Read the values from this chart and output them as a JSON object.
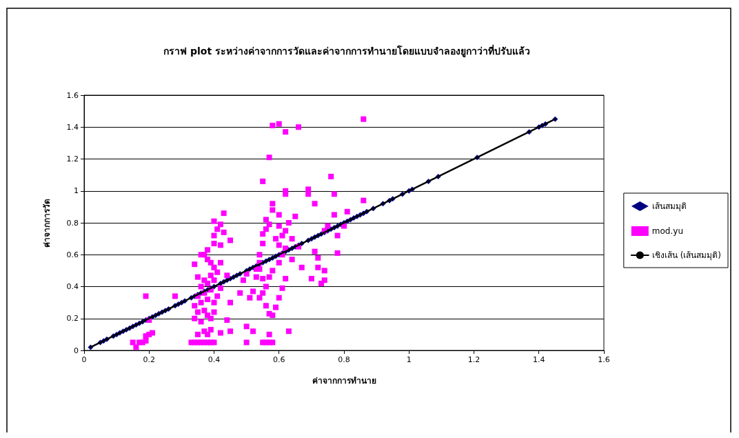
{
  "chart_data": {
    "type": "scatter",
    "title": "กราฟ plot ระหว่างค่าจากการวัดและค่าจากการทำนายโดยแบบจำลองยูกาว่าที่ปรับแล้ว",
    "xlabel": "ค่าจากการทำนาย",
    "ylabel": "ค่าจากการวัด",
    "xlim": [
      0,
      1.6
    ],
    "xticks": [
      0,
      0.2,
      0.4,
      0.6,
      0.8,
      1,
      1.2,
      1.4,
      1.6
    ],
    "ylim": [
      0,
      1.6
    ],
    "yticks": [
      0,
      0.2,
      0.4,
      0.6,
      0.8,
      1,
      1.2,
      1.4,
      1.6
    ],
    "grid": "y",
    "legend": "right",
    "series": [
      {
        "name": "เส้นสมมุติ",
        "marker": "diamond",
        "color": "#000080",
        "x": [
          0.02,
          0.05,
          0.06,
          0.07,
          0.09,
          0.1,
          0.11,
          0.12,
          0.13,
          0.14,
          0.15,
          0.16,
          0.17,
          0.18,
          0.19,
          0.2,
          0.21,
          0.22,
          0.23,
          0.24,
          0.25,
          0.26,
          0.28,
          0.29,
          0.3,
          0.31,
          0.33,
          0.34,
          0.35,
          0.36,
          0.37,
          0.38,
          0.39,
          0.4,
          0.42,
          0.43,
          0.44,
          0.45,
          0.46,
          0.47,
          0.48,
          0.5,
          0.51,
          0.52,
          0.53,
          0.54,
          0.55,
          0.56,
          0.57,
          0.58,
          0.59,
          0.6,
          0.61,
          0.62,
          0.63,
          0.64,
          0.65,
          0.66,
          0.67,
          0.69,
          0.7,
          0.71,
          0.72,
          0.73,
          0.74,
          0.75,
          0.76,
          0.77,
          0.78,
          0.79,
          0.8,
          0.81,
          0.82,
          0.83,
          0.84,
          0.85,
          0.86,
          0.87,
          0.89,
          0.92,
          0.94,
          0.95,
          0.98,
          1,
          1.01,
          1.06,
          1.09,
          1.21,
          1.37,
          1.4,
          1.41,
          1.42,
          1.45
        ],
        "values": [
          0.02,
          0.05,
          0.06,
          0.07,
          0.09,
          0.1,
          0.11,
          0.12,
          0.13,
          0.14,
          0.15,
          0.16,
          0.17,
          0.18,
          0.19,
          0.2,
          0.21,
          0.22,
          0.23,
          0.24,
          0.25,
          0.26,
          0.28,
          0.29,
          0.3,
          0.31,
          0.33,
          0.34,
          0.35,
          0.36,
          0.37,
          0.38,
          0.39,
          0.4,
          0.42,
          0.43,
          0.44,
          0.45,
          0.46,
          0.47,
          0.48,
          0.5,
          0.51,
          0.52,
          0.53,
          0.54,
          0.55,
          0.56,
          0.57,
          0.58,
          0.59,
          0.6,
          0.61,
          0.62,
          0.63,
          0.64,
          0.65,
          0.66,
          0.67,
          0.69,
          0.7,
          0.71,
          0.72,
          0.73,
          0.74,
          0.75,
          0.76,
          0.77,
          0.78,
          0.79,
          0.8,
          0.81,
          0.82,
          0.83,
          0.84,
          0.85,
          0.86,
          0.87,
          0.89,
          0.92,
          0.94,
          0.95,
          0.98,
          1,
          1.01,
          1.06,
          1.09,
          1.21,
          1.37,
          1.4,
          1.41,
          1.42,
          1.45
        ]
      },
      {
        "name": "mod.yu",
        "marker": "square",
        "color": "#ff00ff",
        "x": [
          0.15,
          0.16,
          0.17,
          0.18,
          0.19,
          0.19,
          0.2,
          0.21,
          0.2,
          0.19,
          0.28,
          0.33,
          0.34,
          0.35,
          0.36,
          0.37,
          0.38,
          0.39,
          0.4,
          0.35,
          0.37,
          0.38,
          0.39,
          0.36,
          0.34,
          0.35,
          0.37,
          0.38,
          0.39,
          0.4,
          0.34,
          0.36,
          0.38,
          0.4,
          0.35,
          0.37,
          0.39,
          0.41,
          0.36,
          0.38,
          0.4,
          0.42,
          0.35,
          0.37,
          0.39,
          0.34,
          0.37,
          0.38,
          0.39,
          0.4,
          0.41,
          0.36,
          0.38,
          0.4,
          0.42,
          0.4,
          0.41,
          0.42,
          0.4,
          0.43,
          0.43,
          0.45,
          0.42,
          0.44,
          0.45,
          0.44,
          0.45,
          0.42,
          0.48,
          0.49,
          0.5,
          0.51,
          0.52,
          0.53,
          0.53,
          0.54,
          0.54,
          0.55,
          0.55,
          0.55,
          0.56,
          0.56,
          0.57,
          0.57,
          0.58,
          0.58,
          0.58,
          0.6,
          0.62,
          0.66,
          0.86,
          0.6,
          0.59,
          0.6,
          0.61,
          0.62,
          0.62,
          0.6,
          0.58,
          0.57,
          0.56,
          0.55,
          0.54,
          0.56,
          0.57,
          0.58,
          0.59,
          0.6,
          0.61,
          0.62,
          0.63,
          0.57,
          0.55,
          0.56,
          0.57,
          0.58,
          0.5,
          0.5,
          0.52,
          0.54,
          0.55,
          0.62,
          0.63,
          0.64,
          0.6,
          0.61,
          0.62,
          0.64,
          0.65,
          0.66,
          0.67,
          0.69,
          0.69,
          0.71,
          0.7,
          0.71,
          0.72,
          0.72,
          0.73,
          0.74,
          0.74,
          0.74,
          0.75,
          0.76,
          0.77,
          0.77,
          0.78,
          0.78,
          0.8,
          0.81,
          0.86
        ],
        "values": [
          0.05,
          0.02,
          0.05,
          0.05,
          0.06,
          0.09,
          0.1,
          0.11,
          0.19,
          0.34,
          0.34,
          0.05,
          0.05,
          0.05,
          0.05,
          0.05,
          0.05,
          0.05,
          0.05,
          0.1,
          0.12,
          0.1,
          0.13,
          0.18,
          0.2,
          0.24,
          0.25,
          0.22,
          0.2,
          0.24,
          0.28,
          0.3,
          0.32,
          0.3,
          0.34,
          0.36,
          0.38,
          0.34,
          0.4,
          0.42,
          0.44,
          0.39,
          0.46,
          0.44,
          0.47,
          0.54,
          0.6,
          0.57,
          0.55,
          0.52,
          0.49,
          0.6,
          0.63,
          0.67,
          0.66,
          0.72,
          0.76,
          0.79,
          0.81,
          0.86,
          0.74,
          0.69,
          0.55,
          0.47,
          0.3,
          0.19,
          0.12,
          0.11,
          0.36,
          0.44,
          0.48,
          0.33,
          0.37,
          0.46,
          0.51,
          0.55,
          0.6,
          0.67,
          0.73,
          1.06,
          0.82,
          0.76,
          0.79,
          1.21,
          0.88,
          0.92,
          1.41,
          1.42,
          1.37,
          1.4,
          1.45,
          0.85,
          0.7,
          0.66,
          0.6,
          0.98,
          1,
          0.55,
          0.5,
          0.46,
          0.4,
          0.36,
          0.33,
          0.28,
          0.23,
          0.22,
          0.27,
          0.33,
          0.39,
          0.45,
          0.12,
          0.1,
          0.05,
          0.05,
          0.05,
          0.05,
          0.05,
          0.15,
          0.12,
          0.51,
          0.45,
          0.75,
          0.8,
          0.7,
          0.78,
          0.72,
          0.64,
          0.57,
          0.84,
          0.65,
          0.52,
          1.01,
          0.98,
          0.92,
          0.45,
          0.62,
          0.58,
          0.52,
          0.42,
          0.44,
          0.5,
          0.75,
          0.78,
          1.09,
          0.98,
          0.85,
          0.61,
          0.72,
          0.78,
          0.87,
          0.94
        ]
      },
      {
        "name": "เชิงเส้น (เส้นสมมุติ)",
        "type": "line",
        "marker": "none",
        "line_style": "solid",
        "color": "#000000",
        "x": [
          0.02,
          1.45
        ],
        "values": [
          0.02,
          1.45
        ]
      }
    ]
  }
}
